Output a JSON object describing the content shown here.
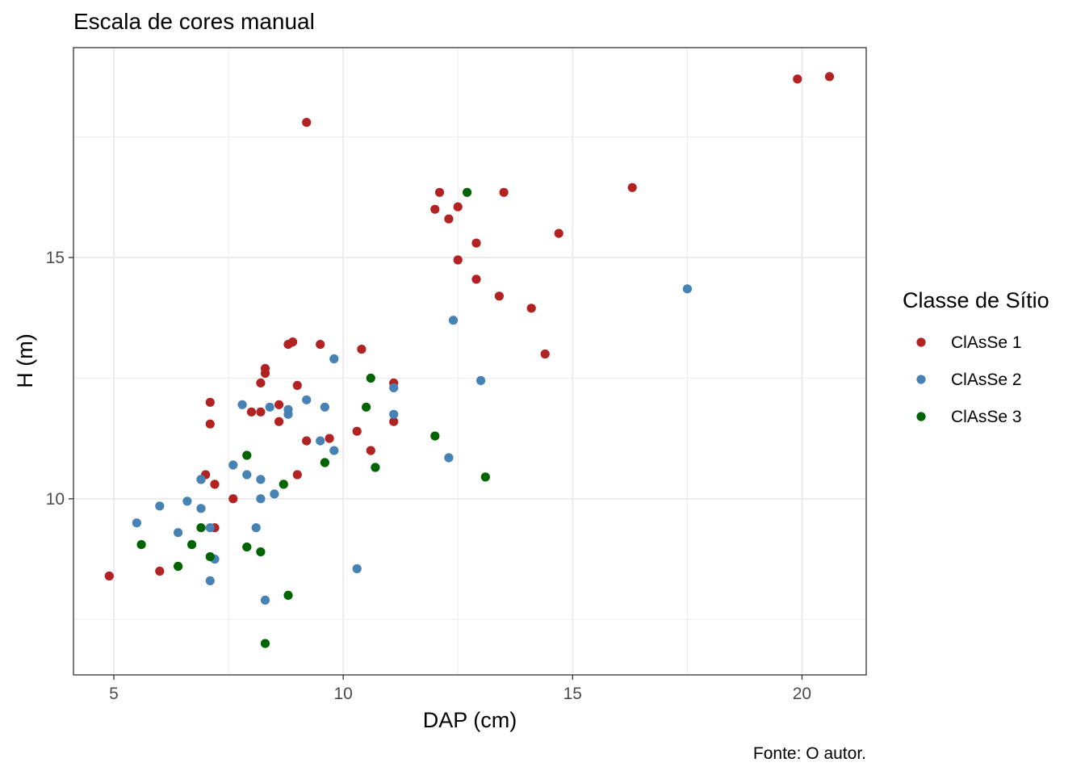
{
  "chart_data": {
    "type": "scatter",
    "title": "Escala de cores manual",
    "xlabel": "DAP (cm)",
    "ylabel": "H (m)",
    "caption": "Fonte: O autor.",
    "xlim": [
      4.12,
      21.4
    ],
    "ylim": [
      6.35,
      19.35
    ],
    "x_ticks": [
      5,
      10,
      15,
      20
    ],
    "y_ticks": [
      10,
      15
    ],
    "x_minor_ticks": [
      7.5,
      12.5,
      17.5
    ],
    "y_minor_ticks": [
      7.5,
      12.5,
      17.5
    ],
    "grid": true,
    "legend": {
      "title": "Classe de Sítio",
      "placement": "right",
      "entries": [
        "ClAsSe 1",
        "ClAsSe 2",
        "ClAsSe 3"
      ]
    },
    "colors": {
      "ClAsSe 1": "#b22222",
      "ClAsSe 2": "#4682b4",
      "ClAsSe 3": "#006400"
    },
    "series": [
      {
        "name": "ClAsSe 1",
        "points": [
          [
            4.9,
            8.4
          ],
          [
            6.0,
            8.5
          ],
          [
            7.0,
            10.5
          ],
          [
            6.9,
            10.4
          ],
          [
            7.2,
            10.3
          ],
          [
            7.1,
            12.0
          ],
          [
            7.1,
            11.55
          ],
          [
            7.2,
            9.4
          ],
          [
            7.6,
            10.0
          ],
          [
            8.0,
            11.8
          ],
          [
            8.2,
            11.8
          ],
          [
            8.2,
            12.4
          ],
          [
            8.3,
            12.6
          ],
          [
            8.3,
            12.7
          ],
          [
            8.6,
            11.6
          ],
          [
            8.6,
            11.95
          ],
          [
            8.8,
            13.2
          ],
          [
            8.9,
            13.25
          ],
          [
            9.0,
            12.35
          ],
          [
            9.0,
            10.5
          ],
          [
            9.2,
            11.2
          ],
          [
            9.2,
            17.8
          ],
          [
            9.5,
            13.2
          ],
          [
            9.7,
            11.25
          ],
          [
            10.3,
            11.4
          ],
          [
            10.4,
            13.1
          ],
          [
            10.6,
            11.0
          ],
          [
            11.1,
            11.6
          ],
          [
            11.1,
            12.4
          ],
          [
            12.0,
            16.0
          ],
          [
            12.1,
            16.35
          ],
          [
            12.3,
            15.8
          ],
          [
            12.5,
            16.05
          ],
          [
            12.5,
            14.95
          ],
          [
            12.9,
            15.3
          ],
          [
            12.9,
            14.55
          ],
          [
            13.4,
            14.2
          ],
          [
            13.5,
            16.35
          ],
          [
            14.1,
            13.95
          ],
          [
            14.4,
            13.0
          ],
          [
            14.7,
            15.5
          ],
          [
            16.3,
            16.45
          ],
          [
            19.9,
            18.7
          ],
          [
            20.6,
            18.75
          ]
        ]
      },
      {
        "name": "ClAsSe 2",
        "points": [
          [
            5.5,
            9.5
          ],
          [
            6.0,
            9.85
          ],
          [
            6.4,
            9.3
          ],
          [
            6.6,
            9.95
          ],
          [
            6.9,
            10.4
          ],
          [
            6.9,
            9.8
          ],
          [
            7.1,
            9.4
          ],
          [
            7.1,
            8.3
          ],
          [
            7.2,
            8.75
          ],
          [
            7.6,
            10.7
          ],
          [
            7.8,
            11.95
          ],
          [
            7.9,
            10.5
          ],
          [
            8.1,
            9.4
          ],
          [
            8.2,
            10.4
          ],
          [
            8.2,
            10.0
          ],
          [
            8.3,
            7.9
          ],
          [
            8.4,
            11.9
          ],
          [
            8.5,
            10.1
          ],
          [
            8.8,
            11.85
          ],
          [
            8.8,
            11.75
          ],
          [
            9.2,
            12.05
          ],
          [
            9.5,
            11.2
          ],
          [
            9.6,
            11.9
          ],
          [
            9.8,
            12.9
          ],
          [
            9.8,
            11.0
          ],
          [
            10.3,
            8.55
          ],
          [
            11.1,
            12.3
          ],
          [
            11.1,
            11.75
          ],
          [
            12.3,
            10.85
          ],
          [
            12.4,
            13.7
          ],
          [
            13.0,
            12.45
          ],
          [
            17.5,
            14.35
          ]
        ]
      },
      {
        "name": "ClAsSe 3",
        "points": [
          [
            5.6,
            9.05
          ],
          [
            6.4,
            8.6
          ],
          [
            6.7,
            9.05
          ],
          [
            6.9,
            9.4
          ],
          [
            7.1,
            8.8
          ],
          [
            7.9,
            10.9
          ],
          [
            7.9,
            9.0
          ],
          [
            8.2,
            8.9
          ],
          [
            8.3,
            7.0
          ],
          [
            8.7,
            10.3
          ],
          [
            8.8,
            8.0
          ],
          [
            9.6,
            10.75
          ],
          [
            10.5,
            11.9
          ],
          [
            10.6,
            12.5
          ],
          [
            10.7,
            10.65
          ],
          [
            12.0,
            11.3
          ],
          [
            12.7,
            16.35
          ],
          [
            13.1,
            10.45
          ]
        ]
      }
    ]
  }
}
